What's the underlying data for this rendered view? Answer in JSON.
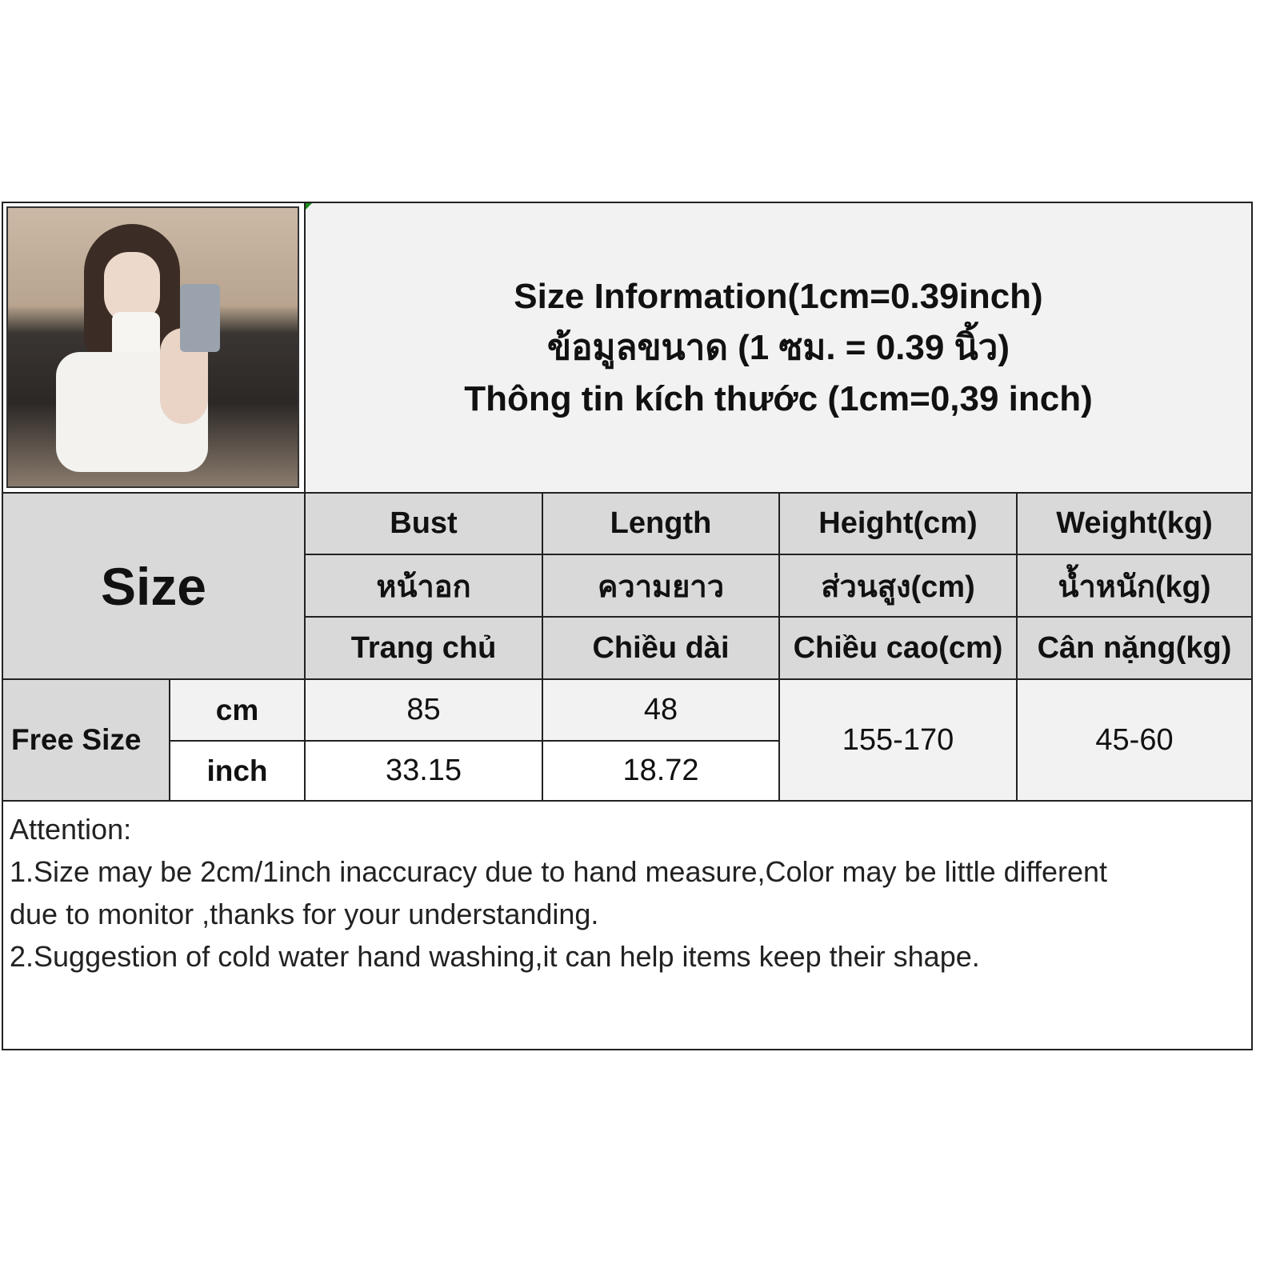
{
  "title": {
    "line1": "Size Information(1cm=0.39inch)",
    "line2": "ข้อมูลขนาด (1 ซม. = 0.39 นิ้ว)",
    "line3": "Thông tin kích thước (1cm=0,39 inch)"
  },
  "table": {
    "size_label": "Size",
    "columns": [
      {
        "en": "Bust",
        "th": "หน้าอก",
        "vi": "Trang chủ"
      },
      {
        "en": "Length",
        "th": "ความยาว",
        "vi": "Chiều dài"
      },
      {
        "en": "Height(cm)",
        "th": "ส่วนสูง(cm)",
        "vi": "Chiều cao(cm)"
      },
      {
        "en": "Weight(kg)",
        "th": "น้ำหนัก(kg)",
        "vi": "Cân nặng(kg)"
      }
    ],
    "row_label": "Free Size",
    "units": [
      "cm",
      "inch"
    ],
    "cm_values": [
      "85",
      "48"
    ],
    "inch_values": [
      "33.15",
      "18.72"
    ],
    "height": "155-170",
    "weight": "45-60"
  },
  "attention": {
    "heading": "Attention:",
    "line1": "1.Size may be 2cm/1inch inaccuracy due to hand measure,Color may be little different",
    "line2": "due to monitor ,thanks for your understanding.",
    "line3": "2.Suggestion of cold water hand washing,it can help items keep their shape."
  }
}
